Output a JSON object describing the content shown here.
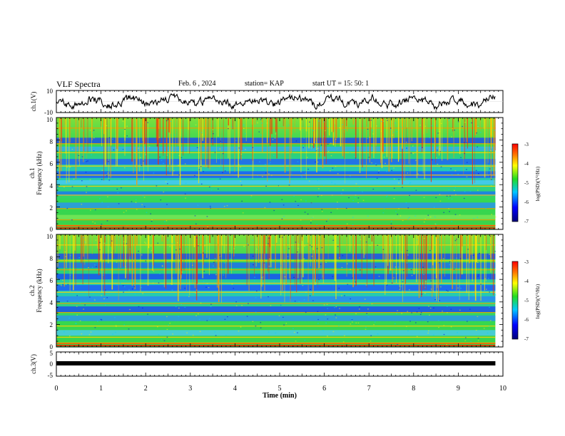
{
  "header": {
    "title": "VLF Spectra",
    "date": "Feb. 6 , 2024",
    "station": "station= KAP",
    "start": "start  UT =   15: 50: 1"
  },
  "chart_data": [
    {
      "type": "line",
      "panel": "ch1-waveform",
      "ylabel": "ch.1(V)",
      "ylim": [
        -10,
        10
      ],
      "yticks": [
        "10",
        "-10"
      ],
      "xlim": [
        0,
        10
      ]
    },
    {
      "type": "heatmap",
      "panel": "ch1-spectrogram",
      "ylabel": "ch.1\nFrequency (kHz)",
      "ylim": [
        0,
        10
      ],
      "yticks": [
        "0",
        "2",
        "4",
        "6",
        "8",
        "10"
      ],
      "xlim": [
        0,
        10
      ],
      "colorbar": {
        "label": "log(PSD)(V²/Hz)",
        "ticks": [
          "-3",
          "-4",
          "-5",
          "-6",
          "-7"
        ],
        "range": [
          -7,
          -3
        ]
      }
    },
    {
      "type": "heatmap",
      "panel": "ch2-spectrogram",
      "ylabel": "ch.2\nFrequency (kHz)",
      "ylim": [
        0,
        10
      ],
      "yticks": [
        "0",
        "2",
        "4",
        "6",
        "8",
        "10"
      ],
      "xlim": [
        0,
        10
      ],
      "colorbar": {
        "label": "log(PSD)(V²/Hz)",
        "ticks": [
          "-3",
          "-4",
          "-5",
          "-6",
          "-7"
        ],
        "range": [
          -7,
          -3
        ]
      }
    },
    {
      "type": "line",
      "panel": "ch3-signal",
      "ylabel": "ch.3(V)",
      "ylim": [
        -5,
        5
      ],
      "yticks": [
        "5",
        "0",
        "-5"
      ],
      "xlim": [
        0,
        10
      ],
      "level": -1
    }
  ],
  "xaxis": {
    "label": "Time (min)",
    "ticks": [
      "0",
      "1",
      "2",
      "3",
      "4",
      "5",
      "6",
      "7",
      "8",
      "9",
      "10"
    ],
    "data_end": 9.83
  },
  "labels": {
    "ch1_wave_ylabel": "ch.1(V)",
    "ch1_spec_ylabel_a": "ch.1",
    "ch1_spec_ylabel_b": "Frequency (kHz)",
    "ch2_spec_ylabel_a": "ch.2",
    "ch2_spec_ylabel_b": "Frequency (kHz)",
    "ch3_ylabel": "ch.3(V)",
    "colorbar_label": "log(PSD)(V²/Hz)"
  },
  "colors": {
    "low": "#0000cc",
    "mid_low": "#00c8ff",
    "mid": "#22dd22",
    "mid_high": "#ffff00",
    "high": "#ff0000",
    "trace": "#000000"
  }
}
